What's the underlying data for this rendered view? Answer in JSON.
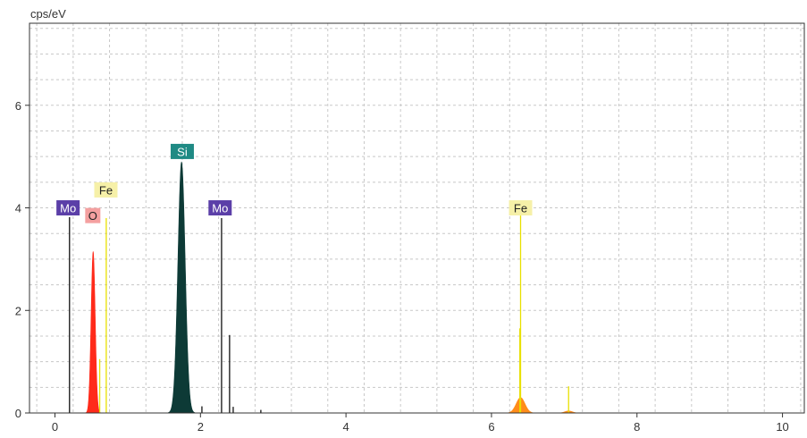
{
  "chart_data": {
    "type": "area",
    "title": "",
    "ylabel": "cps/eV",
    "xlabel": "",
    "xlim": [
      -0.35,
      10.3
    ],
    "ylim": [
      0,
      7.6
    ],
    "x_ticks": [
      0,
      2,
      4,
      6,
      8,
      10
    ],
    "y_ticks": [
      0,
      2,
      4,
      6
    ],
    "grid": true,
    "colors": {
      "O": "#ff2a1a",
      "Si": "#0d3a36",
      "Fe_K": "#ff8c1a",
      "Fe_L": "#e8e000",
      "Mo": "#111111",
      "frame": "#333333",
      "grid": "#c8c8c8"
    },
    "peaks": [
      {
        "element": "O",
        "center": 0.525,
        "height": 3.15,
        "sigma": 0.028,
        "color": "#ff2a1a"
      },
      {
        "element": "Si",
        "center": 1.74,
        "height": 4.9,
        "sigma": 0.05,
        "color": "#0d3a36"
      },
      {
        "element": "Fe",
        "center": 6.4,
        "height": 0.3,
        "sigma": 0.06,
        "color": "#ff8c1a"
      },
      {
        "element": "Fe",
        "center": 7.06,
        "height": 0.04,
        "sigma": 0.05,
        "color": "#ff8c1a"
      }
    ],
    "lines": [
      {
        "element": "Mo",
        "x": 0.2,
        "y": 3.82,
        "color": "#111111"
      },
      {
        "element": "Fe",
        "x": 0.705,
        "y": 3.8,
        "color": "#e8e000"
      },
      {
        "element": "Fe",
        "x": 0.615,
        "y": 1.05,
        "color": "#e8e000"
      },
      {
        "element": "Mo",
        "x": 2.29,
        "y": 3.8,
        "color": "#111111"
      },
      {
        "element": "Mo",
        "x": 2.4,
        "y": 1.52,
        "color": "#111111"
      },
      {
        "element": "Mo",
        "x": 2.02,
        "y": 0.13,
        "color": "#111111"
      },
      {
        "element": "Mo",
        "x": 2.45,
        "y": 0.12,
        "color": "#111111"
      },
      {
        "element": "Mo",
        "x": 2.83,
        "y": 0.06,
        "color": "#111111"
      },
      {
        "element": "Fe",
        "x": 6.4,
        "y": 3.85,
        "color": "#e8e000"
      },
      {
        "element": "Fe",
        "x": 6.39,
        "y": 1.65,
        "color": "#e8e000"
      },
      {
        "element": "Fe",
        "x": 7.06,
        "y": 0.52,
        "color": "#e8e000"
      }
    ],
    "labels": [
      {
        "text": "Mo",
        "x": 0.18,
        "y": 4.0,
        "bg": "#5b3fa8",
        "fg": "#ffffff"
      },
      {
        "text": "Fe",
        "x": 0.7,
        "y": 4.35,
        "bg": "#f6f0a8",
        "fg": "#222222"
      },
      {
        "text": "O",
        "x": 0.52,
        "y": 3.85,
        "bg": "#f4a0a0",
        "fg": "#222222"
      },
      {
        "text": "Si",
        "x": 1.75,
        "y": 5.1,
        "bg": "#1f8a84",
        "fg": "#ffffff"
      },
      {
        "text": "Mo",
        "x": 2.27,
        "y": 4.0,
        "bg": "#5b3fa8",
        "fg": "#ffffff"
      },
      {
        "text": "Fe",
        "x": 6.4,
        "y": 4.0,
        "bg": "#f6f0a8",
        "fg": "#222222"
      }
    ]
  }
}
